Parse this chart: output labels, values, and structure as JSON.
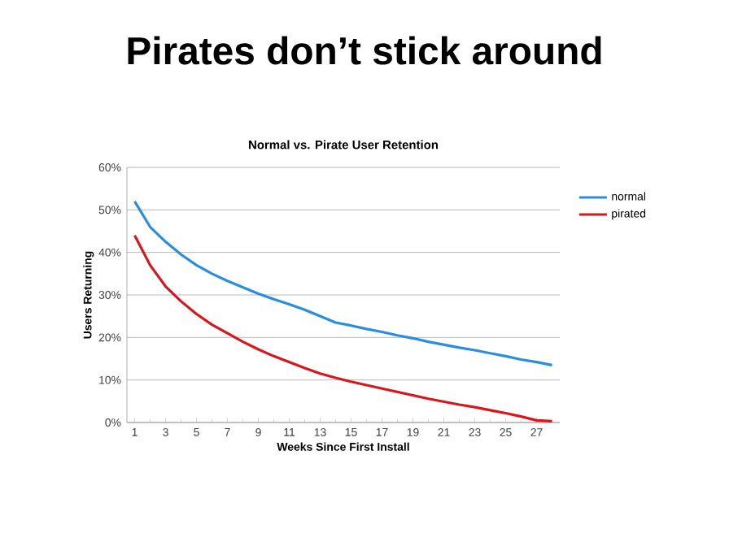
{
  "chart_data": {
    "type": "line",
    "title": "Pirates don’t stick around",
    "subtitle": "Normal vs. Pirate User Retention",
    "xlabel": "Weeks Since First Install",
    "ylabel": "Users Returning",
    "x": [
      1,
      2,
      3,
      4,
      5,
      6,
      7,
      8,
      9,
      10,
      11,
      12,
      13,
      14,
      15,
      16,
      17,
      18,
      19,
      20,
      21,
      22,
      23,
      24,
      25,
      26,
      27,
      28
    ],
    "series": [
      {
        "name": "normal",
        "color": "#2a8ee0",
        "values": [
          52,
          46,
          42.5,
          39.5,
          37,
          35,
          33.3,
          31.8,
          30.3,
          29,
          27.8,
          26.5,
          25,
          23.5,
          22.8,
          22,
          21.3,
          20.5,
          19.8,
          19,
          18.3,
          17.6,
          17,
          16.3,
          15.6,
          14.8,
          14.2,
          13.5
        ]
      },
      {
        "name": "pirated",
        "color": "#d9161c",
        "values": [
          44,
          37,
          32,
          28.5,
          25.5,
          23,
          21,
          19,
          17.2,
          15.6,
          14.2,
          12.8,
          11.5,
          10.5,
          9.6,
          8.8,
          8,
          7.2,
          6.4,
          5.6,
          4.9,
          4.2,
          3.6,
          2.9,
          2.2,
          1.4,
          0.5,
          0.3
        ]
      }
    ],
    "xlim": [
      0.5,
      28.5
    ],
    "xticks": [
      1,
      3,
      5,
      7,
      9,
      11,
      13,
      15,
      17,
      19,
      21,
      23,
      25,
      27
    ],
    "ylim": [
      0,
      60
    ],
    "yticks": [
      {
        "value": 0,
        "label": "0%"
      },
      {
        "value": 10,
        "label": "10%"
      },
      {
        "value": 20,
        "label": "20%"
      },
      {
        "value": 30,
        "label": "30%"
      },
      {
        "value": 40,
        "label": "40%"
      },
      {
        "value": 50,
        "label": "50%"
      },
      {
        "value": 60,
        "label": "60%"
      }
    ],
    "grid": "y",
    "legend": "right",
    "marker": "none",
    "line_style": "solid"
  }
}
